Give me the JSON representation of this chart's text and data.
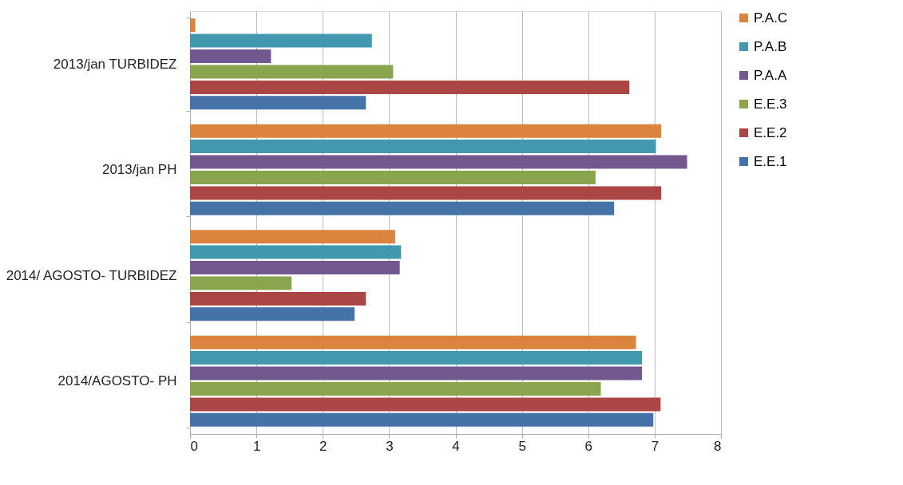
{
  "chart_data": {
    "type": "bar",
    "orientation": "horizontal",
    "categories": [
      "2013/jan TURBIDEZ",
      "2013/jan PH",
      "2014/ AGOSTO- TURBIDEZ",
      "2014/AGOSTO- PH"
    ],
    "series": [
      {
        "name": "P.A.C",
        "color": "#db843d",
        "values": [
          0.08,
          7.1,
          3.09,
          6.72
        ]
      },
      {
        "name": "P.A.B",
        "color": "#4198af",
        "values": [
          2.74,
          7.02,
          3.18,
          6.81
        ]
      },
      {
        "name": "P.A.A",
        "color": "#71588f",
        "values": [
          1.22,
          7.49,
          3.16,
          6.81
        ]
      },
      {
        "name": "E.E.3",
        "color": "#89a54e",
        "values": [
          3.06,
          6.11,
          1.53,
          6.19
        ]
      },
      {
        "name": "E.E.2",
        "color": "#aa4643",
        "values": [
          6.62,
          7.1,
          2.65,
          7.09
        ]
      },
      {
        "name": "E.E.1",
        "color": "#4572a7",
        "values": [
          2.65,
          6.39,
          2.48,
          6.98
        ]
      }
    ],
    "xlim": [
      0,
      8
    ],
    "xticks": [
      0,
      1,
      2,
      3,
      4,
      5,
      6,
      7,
      8
    ],
    "grid": "x",
    "legend": "right"
  }
}
